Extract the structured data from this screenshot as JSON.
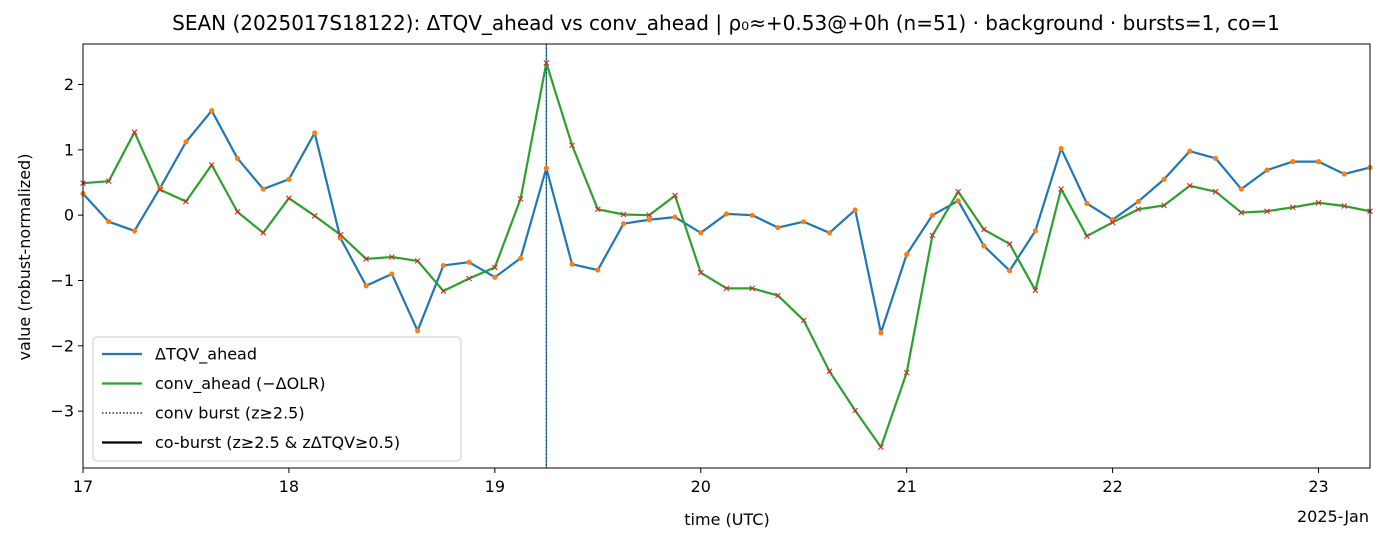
{
  "chart_data": {
    "type": "line",
    "title": "SEAN (2025017S18122): ΔTQV_ahead vs conv_ahead | ρ₀≈+0.53@+0h (n=51) · background · bursts=1, co=1",
    "xlabel": "time (UTC)",
    "ylabel": "value (robust-normalized)",
    "x_offset_label": "2025-Jan",
    "x_ticks": [
      17,
      18,
      19,
      20,
      21,
      22,
      23
    ],
    "x_tick_labels": [
      "17",
      "18",
      "19",
      "20",
      "21",
      "22",
      "23"
    ],
    "y_ticks": [
      2,
      1,
      0,
      -1,
      -2,
      -3
    ],
    "y_tick_labels": [
      "2",
      "1",
      "0",
      "−1",
      "−2",
      "−3"
    ],
    "xlim": [
      17,
      23.25
    ],
    "ylim": [
      -3.87,
      2.62
    ],
    "x": [
      17,
      17.125,
      17.25,
      17.375,
      17.5,
      17.625,
      17.75,
      17.875,
      18,
      18.125,
      18.25,
      18.375,
      18.5,
      18.625,
      18.75,
      18.875,
      19,
      19.125,
      19.25,
      19.375,
      19.5,
      19.625,
      19.75,
      19.875,
      20,
      20.125,
      20.25,
      20.375,
      20.5,
      20.625,
      20.75,
      20.875,
      21,
      21.125,
      21.25,
      21.375,
      21.5,
      21.625,
      21.75,
      21.875,
      22,
      22.125,
      22.25,
      22.375,
      22.5,
      22.625,
      22.75,
      22.875,
      23,
      23.125,
      23.25
    ],
    "series": [
      {
        "name": "ΔTQV_ahead",
        "color": "#1f77b4",
        "marker": "dot",
        "marker_color": "#ff7f0e",
        "values": [
          0.33,
          -0.1,
          -0.24,
          0.42,
          1.12,
          1.6,
          0.87,
          0.4,
          0.55,
          1.26,
          -0.35,
          -1.08,
          -0.9,
          -1.77,
          -0.77,
          -0.72,
          -0.95,
          -0.66,
          0.72,
          -0.75,
          -0.84,
          -0.13,
          -0.07,
          -0.03,
          -0.27,
          0.02,
          0.0,
          -0.19,
          -0.1,
          -0.27,
          0.08,
          -1.8,
          -0.6,
          0.0,
          0.22,
          -0.47,
          -0.85,
          -0.24,
          1.02,
          0.18,
          -0.07,
          0.21,
          0.55,
          0.98,
          0.87,
          0.4,
          0.69,
          0.82,
          0.82,
          0.63,
          0.73
        ]
      },
      {
        "name": "conv_ahead (−ΔOLR)",
        "color": "#2ca02c",
        "marker": "x",
        "marker_color": "#d62728",
        "values": [
          0.49,
          0.52,
          1.27,
          0.39,
          0.21,
          0.77,
          0.05,
          -0.27,
          0.26,
          -0.01,
          -0.3,
          -0.67,
          -0.64,
          -0.7,
          -1.16,
          -0.97,
          -0.8,
          0.25,
          2.33,
          1.07,
          0.09,
          0.01,
          0.0,
          0.3,
          -0.88,
          -1.12,
          -1.12,
          -1.23,
          -1.61,
          -2.39,
          -2.99,
          -3.55,
          -2.41,
          -0.31,
          0.36,
          -0.22,
          -0.44,
          -1.15,
          0.4,
          -0.32,
          -0.11,
          0.09,
          0.15,
          0.45,
          0.36,
          0.04,
          0.06,
          0.12,
          0.19,
          0.14,
          0.06
        ]
      }
    ],
    "burst_marker_x": 19.25,
    "legend": {
      "placement": "lower-left",
      "entries": [
        {
          "label": "ΔTQV_ahead",
          "style": "solid",
          "color": "#1f77b4"
        },
        {
          "label": "conv_ahead (−ΔOLR)",
          "style": "solid",
          "color": "#2ca02c"
        },
        {
          "label": "conv burst (z≥2.5)",
          "style": "dotted",
          "color": "#000000"
        },
        {
          "label": "co-burst (z≥2.5 & zΔTQV≥0.5)",
          "style": "solid",
          "color": "#000000"
        }
      ]
    },
    "grid": false
  }
}
